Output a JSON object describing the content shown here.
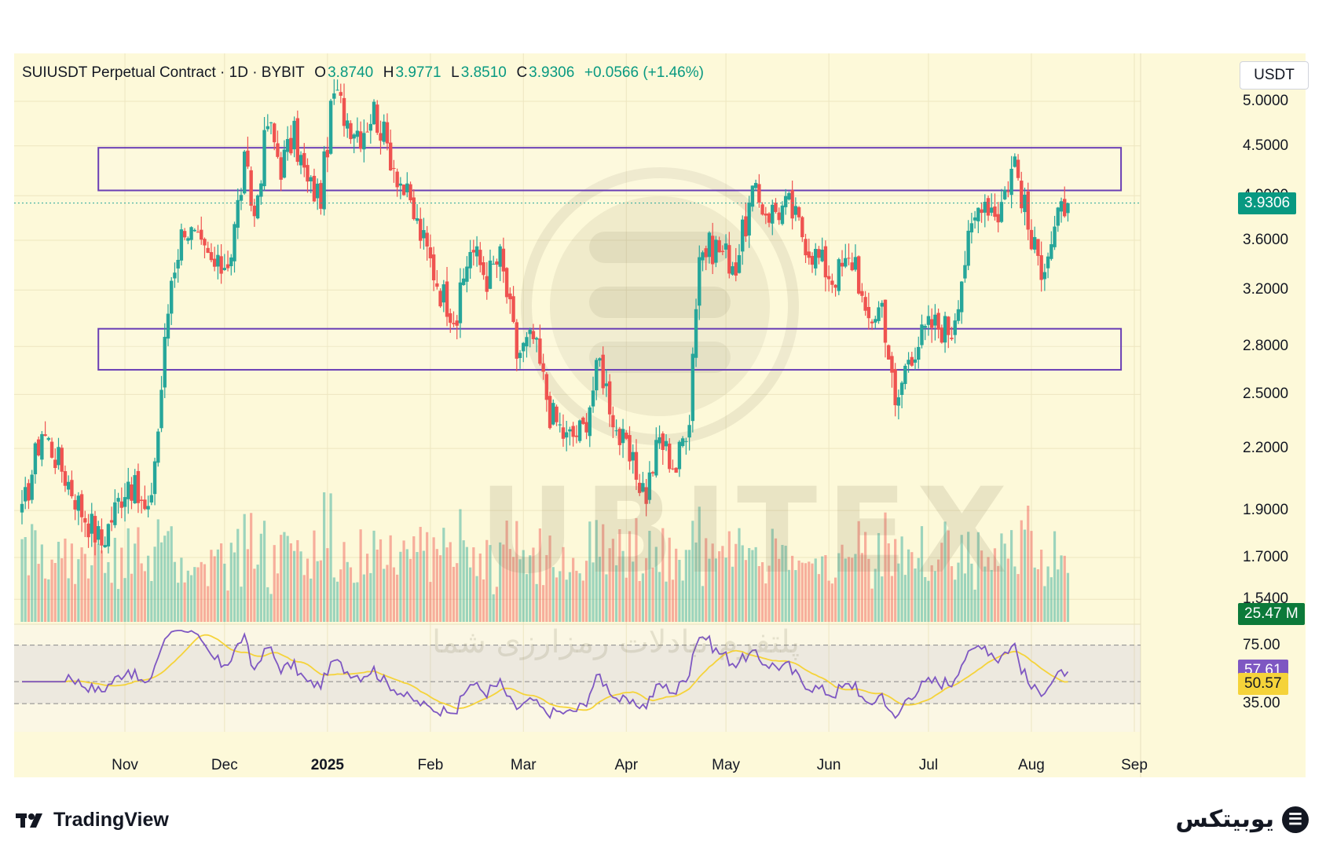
{
  "header": {
    "symbol": "SUIUSDT Perpetual Contract · 1D · BYBIT",
    "o_label": "O",
    "o_value": "3.8740",
    "h_label": "H",
    "h_value": "3.9771",
    "l_label": "L",
    "l_value": "3.8510",
    "c_label": "C",
    "c_value": "3.9306",
    "change": "+0.0566 (+1.46%)"
  },
  "unit_button": "USDT",
  "price_badge": "3.9306",
  "volume_badge": "25.47 M",
  "rsi_badge": "57.61",
  "rsi_ma_badge": "50.57",
  "price_ticks": [
    "5.0000",
    "4.5000",
    "4.0000",
    "3.6000",
    "3.2000",
    "2.8000",
    "2.5000",
    "2.2000",
    "1.9000",
    "1.7000",
    "1.5400"
  ],
  "rsi_ticks": [
    "75.00",
    "35.00"
  ],
  "x_ticks": [
    "Nov",
    "Dec",
    "2025",
    "Feb",
    "Mar",
    "Apr",
    "May",
    "Jun",
    "Jul",
    "Aug",
    "Sep"
  ],
  "footer": {
    "tradingview": "TradingView",
    "brand": "یوبیتکس"
  },
  "watermark": {
    "main": "UBITEX",
    "sub": "پلتفرم تبادلات رمزارزی شما"
  },
  "colors": {
    "up": "#26a69a",
    "down": "#ef5350",
    "rsi": "#7e57c2",
    "rsi_ma": "#f5d33a",
    "zone": "#6a3fb5",
    "bg": "#fdf9d9",
    "price_badge": "#089981",
    "volume_badge": "#0c7a3a"
  },
  "chart_data": {
    "type": "candlestick",
    "symbol": "SUIUSDT",
    "interval": "1D",
    "exchange": "BYBIT",
    "x_range": [
      "2024-10-01",
      "2025-09-01"
    ],
    "y_scale": "log",
    "ylim": [
      1.46,
      5.6
    ],
    "last_price": 3.9306,
    "rsi": {
      "value": 57.61,
      "ma": 50.57,
      "upper_band": 75,
      "lower_band": 35
    },
    "zones": [
      {
        "from": "2024-10-24",
        "to": "2025-08-28",
        "low": 4.05,
        "high": 4.48
      },
      {
        "from": "2024-10-24",
        "to": "2025-08-28",
        "low": 2.65,
        "high": 2.92
      }
    ],
    "anchors": [
      {
        "date": "2024-10-01",
        "close": 1.8
      },
      {
        "date": "2024-10-08",
        "close": 2.3
      },
      {
        "date": "2024-10-14",
        "close": 2.1
      },
      {
        "date": "2024-10-20",
        "close": 1.9
      },
      {
        "date": "2024-10-26",
        "close": 1.76
      },
      {
        "date": "2024-11-03",
        "close": 2.05
      },
      {
        "date": "2024-11-09",
        "close": 1.86
      },
      {
        "date": "2024-11-12",
        "close": 2.3
      },
      {
        "date": "2024-11-16",
        "close": 3.3
      },
      {
        "date": "2024-11-20",
        "close": 3.75
      },
      {
        "date": "2024-11-25",
        "close": 3.5
      },
      {
        "date": "2024-11-30",
        "close": 3.35
      },
      {
        "date": "2024-12-04",
        "close": 3.5
      },
      {
        "date": "2024-12-08",
        "close": 4.3
      },
      {
        "date": "2024-12-11",
        "close": 3.8
      },
      {
        "date": "2024-12-15",
        "close": 4.75
      },
      {
        "date": "2024-12-19",
        "close": 4.3
      },
      {
        "date": "2024-12-23",
        "close": 4.6
      },
      {
        "date": "2024-12-27",
        "close": 4.1
      },
      {
        "date": "2024-12-31",
        "close": 4.0
      },
      {
        "date": "2025-01-04",
        "close": 5.1
      },
      {
        "date": "2025-01-08",
        "close": 4.8
      },
      {
        "date": "2025-01-12",
        "close": 4.65
      },
      {
        "date": "2025-01-16",
        "close": 4.9
      },
      {
        "date": "2025-01-20",
        "close": 4.5
      },
      {
        "date": "2025-01-25",
        "close": 4.05
      },
      {
        "date": "2025-02-01",
        "close": 3.5
      },
      {
        "date": "2025-02-05",
        "close": 3.2
      },
      {
        "date": "2025-02-10",
        "close": 3.0
      },
      {
        "date": "2025-02-14",
        "close": 3.55
      },
      {
        "date": "2025-02-19",
        "close": 3.3
      },
      {
        "date": "2025-02-23",
        "close": 3.45
      },
      {
        "date": "2025-02-28",
        "close": 2.75
      },
      {
        "date": "2025-03-05",
        "close": 2.85
      },
      {
        "date": "2025-03-10",
        "close": 2.4
      },
      {
        "date": "2025-03-15",
        "close": 2.25
      },
      {
        "date": "2025-03-20",
        "close": 2.3
      },
      {
        "date": "2025-03-25",
        "close": 2.7
      },
      {
        "date": "2025-03-30",
        "close": 2.3
      },
      {
        "date": "2025-04-04",
        "close": 2.1
      },
      {
        "date": "2025-04-08",
        "close": 1.98
      },
      {
        "date": "2025-04-12",
        "close": 2.25
      },
      {
        "date": "2025-04-17",
        "close": 2.1
      },
      {
        "date": "2025-04-21",
        "close": 2.4
      },
      {
        "date": "2025-04-24",
        "close": 3.5
      },
      {
        "date": "2025-04-29",
        "close": 3.55
      },
      {
        "date": "2025-05-05",
        "close": 3.4
      },
      {
        "date": "2025-05-10",
        "close": 4.0
      },
      {
        "date": "2025-05-15",
        "close": 3.85
      },
      {
        "date": "2025-05-21",
        "close": 3.9
      },
      {
        "date": "2025-05-27",
        "close": 3.55
      },
      {
        "date": "2025-06-03",
        "close": 3.3
      },
      {
        "date": "2025-06-10",
        "close": 3.45
      },
      {
        "date": "2025-06-13",
        "close": 2.95
      },
      {
        "date": "2025-06-18",
        "close": 3.1
      },
      {
        "date": "2025-06-22",
        "close": 2.4
      },
      {
        "date": "2025-06-26",
        "close": 2.75
      },
      {
        "date": "2025-07-03",
        "close": 2.95
      },
      {
        "date": "2025-07-09",
        "close": 2.92
      },
      {
        "date": "2025-07-13",
        "close": 3.45
      },
      {
        "date": "2025-07-18",
        "close": 4.0
      },
      {
        "date": "2025-07-23",
        "close": 3.85
      },
      {
        "date": "2025-07-28",
        "close": 4.35
      },
      {
        "date": "2025-08-02",
        "close": 3.55
      },
      {
        "date": "2025-08-05",
        "close": 3.4
      },
      {
        "date": "2025-08-08",
        "close": 3.6
      },
      {
        "date": "2025-08-12",
        "close": 3.9306
      }
    ]
  }
}
